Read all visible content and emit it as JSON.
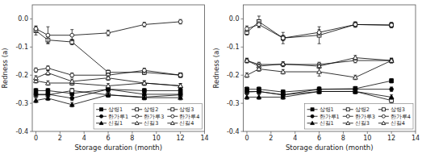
{
  "chart_data": [
    {
      "type": "line",
      "xlabel": "Storage duration (month)",
      "ylabel": "Redness (a)",
      "x": [
        0,
        1,
        3,
        6,
        9,
        12
      ],
      "xlim": [
        -0.3,
        14
      ],
      "ylim": [
        -0.4,
        0.05
      ],
      "xticks": [
        0,
        2,
        4,
        6,
        8,
        10,
        12,
        14
      ],
      "yticks": [
        {
          "value": 0.0,
          "label": "0.0"
        },
        -0.1,
        -0.2,
        -0.3,
        -0.4
      ],
      "grid": false,
      "legend": "lower right",
      "series": [
        {
          "name": "상령1",
          "color": "black",
          "marker": "square",
          "values": [
            -0.255,
            -0.255,
            -0.265,
            -0.25,
            -0.255,
            -0.255
          ],
          "error": [
            0.008,
            0.008,
            0.008,
            0.008,
            0.008,
            0.008
          ]
        },
        {
          "name": "상령2",
          "color": "black",
          "marker": "square-open",
          "values": [
            -0.27,
            -0.27,
            -0.255,
            -0.27,
            -0.278,
            -0.27
          ],
          "error": [
            0.008,
            0.008,
            0.008,
            0.008,
            0.008,
            0.008
          ]
        },
        {
          "name": "상령3",
          "color": "black",
          "marker": "square-open",
          "values": [
            -0.042,
            -0.075,
            -0.082,
            -0.19,
            -0.19,
            -0.2
          ],
          "error": [
            0.015,
            0.012,
            0.01,
            0.008,
            0.008,
            0.008
          ]
        },
        {
          "name": "한가루1",
          "color": "black",
          "marker": "circle",
          "values": [
            -0.268,
            -0.268,
            -0.282,
            -0.25,
            -0.268,
            -0.268
          ],
          "error": [
            0.008,
            0.008,
            0.008,
            0.008,
            0.008,
            0.008
          ]
        },
        {
          "name": "한가루3",
          "color": "black",
          "marker": "circle-open",
          "values": [
            -0.182,
            -0.175,
            -0.2,
            -0.2,
            -0.183,
            -0.2
          ],
          "error": [
            0.008,
            0.008,
            0.008,
            0.008,
            0.008,
            0.008
          ]
        },
        {
          "name": "한가루4",
          "color": "black",
          "marker": "circle-open",
          "values": [
            -0.035,
            -0.058,
            -0.058,
            -0.05,
            -0.02,
            -0.01
          ],
          "error": [
            0.01,
            0.03,
            0.02,
            0.01,
            0.008,
            0.008
          ]
        },
        {
          "name": "신길1",
          "color": "black",
          "marker": "triangle",
          "values": [
            -0.29,
            -0.282,
            -0.305,
            -0.27,
            -0.28,
            -0.28
          ],
          "error": [
            0.008,
            0.008,
            0.008,
            0.008,
            0.008,
            0.008
          ]
        },
        {
          "name": "신길3",
          "color": "black",
          "marker": "triangle-open",
          "values": [
            -0.22,
            -0.228,
            -0.228,
            -0.238,
            -0.228,
            -0.238
          ],
          "error": [
            0.008,
            0.008,
            0.008,
            0.008,
            0.008,
            0.008
          ]
        },
        {
          "name": "신길4",
          "color": "black",
          "marker": "triangle-open",
          "values": [
            -0.21,
            -0.192,
            -0.222,
            -0.21,
            -0.228,
            -0.238
          ],
          "error": [
            0.008,
            0.008,
            0.008,
            0.008,
            0.008,
            0.008
          ]
        }
      ]
    },
    {
      "type": "line",
      "xlabel": "Storage duration (month)",
      "ylabel": "Redness (a)",
      "x": [
        0,
        1,
        3,
        6,
        9,
        12
      ],
      "xlim": [
        -0.3,
        14
      ],
      "ylim": [
        -0.4,
        0.05
      ],
      "xticks": [
        0,
        2,
        4,
        6,
        8,
        10,
        12,
        14
      ],
      "yticks": [
        {
          "value": 0.0,
          "label": "0.0"
        },
        -0.1,
        -0.2,
        -0.3,
        -0.4
      ],
      "grid": false,
      "legend": "lower right",
      "series": [
        {
          "name": "상령1",
          "color": "black",
          "marker": "square",
          "values": [
            -0.25,
            -0.25,
            -0.26,
            -0.25,
            -0.248,
            -0.22
          ],
          "error": [
            0.008,
            0.008,
            0.008,
            0.008,
            0.008,
            0.008
          ]
        },
        {
          "name": "상령2",
          "color": "black",
          "marker": "square-open",
          "values": [
            -0.26,
            -0.258,
            -0.27,
            -0.258,
            -0.258,
            -0.29
          ],
          "error": [
            0.008,
            0.008,
            0.008,
            0.008,
            0.008,
            0.008
          ]
        },
        {
          "name": "상령3",
          "color": "black",
          "marker": "square-open",
          "values": [
            -0.048,
            -0.01,
            -0.068,
            -0.058,
            -0.02,
            -0.022
          ],
          "error": [
            0.01,
            0.02,
            0.01,
            0.03,
            0.01,
            0.01
          ]
        },
        {
          "name": "한가루1",
          "color": "black",
          "marker": "circle",
          "values": [
            -0.258,
            -0.258,
            -0.27,
            -0.25,
            -0.25,
            -0.25
          ],
          "error": [
            0.008,
            0.008,
            0.008,
            0.008,
            0.008,
            0.008
          ]
        },
        {
          "name": "한가루3",
          "color": "black",
          "marker": "circle-open",
          "values": [
            -0.148,
            -0.162,
            -0.162,
            -0.162,
            -0.148,
            -0.148
          ],
          "error": [
            0.008,
            0.008,
            0.008,
            0.008,
            0.008,
            0.008
          ]
        },
        {
          "name": "한가루4",
          "color": "black",
          "marker": "circle-open",
          "values": [
            -0.035,
            -0.02,
            -0.068,
            -0.048,
            -0.02,
            -0.022
          ],
          "error": [
            0.01,
            0.01,
            0.02,
            0.01,
            0.008,
            0.008
          ]
        },
        {
          "name": "신길1",
          "color": "black",
          "marker": "triangle",
          "values": [
            -0.278,
            -0.278,
            -0.278,
            -0.258,
            -0.258,
            -0.278
          ],
          "error": [
            0.008,
            0.008,
            0.008,
            0.008,
            0.008,
            0.008
          ]
        },
        {
          "name": "신길3",
          "color": "black",
          "marker": "triangle-open",
          "values": [
            -0.148,
            -0.168,
            -0.16,
            -0.168,
            -0.138,
            -0.148
          ],
          "error": [
            0.008,
            0.008,
            0.008,
            0.008,
            0.008,
            0.008
          ]
        },
        {
          "name": "신길4",
          "color": "black",
          "marker": "triangle-open",
          "values": [
            -0.2,
            -0.178,
            -0.188,
            -0.188,
            -0.208,
            -0.148
          ],
          "error": [
            0.008,
            0.008,
            0.008,
            0.015,
            0.008,
            0.008
          ]
        }
      ]
    }
  ]
}
